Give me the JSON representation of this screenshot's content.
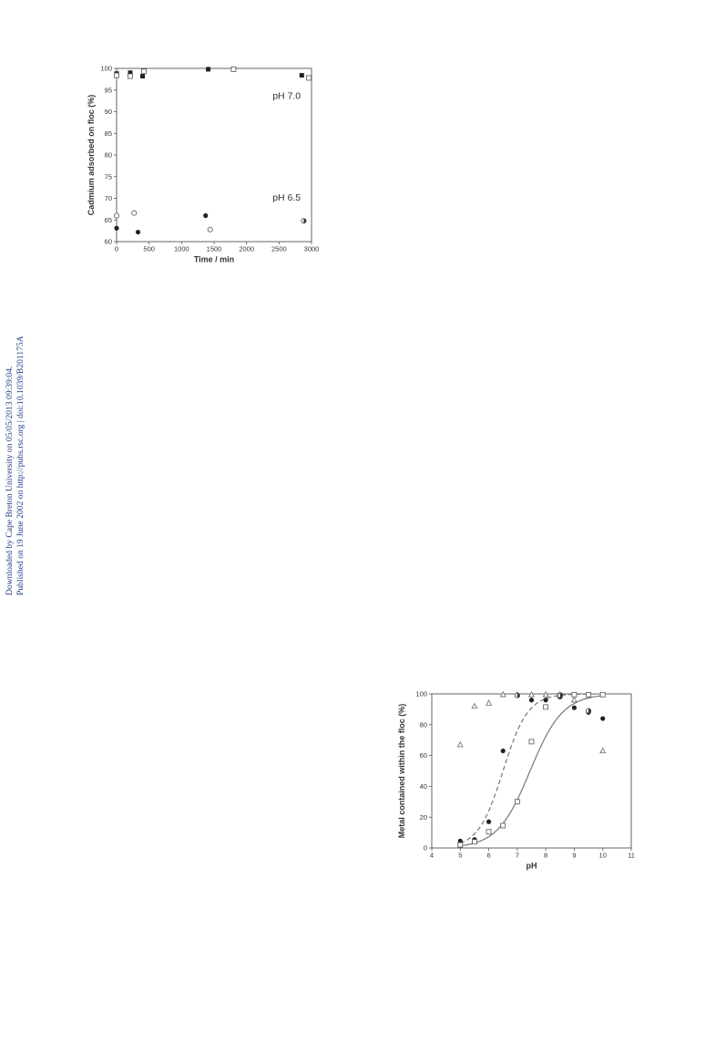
{
  "side_note": {
    "line1": "Downloaded by Cape Breton University on 05/05/2013 09:39:04.",
    "line2": "Published on 19 June 2002 on http://pubs.rsc.org | doi:10.1039/B201175A",
    "color": "#1f3b8f"
  },
  "chart_data": [
    {
      "type": "scatter",
      "title": "",
      "xlabel": "Time / min",
      "ylabel": "Cadmium adsorbed on floc (%)",
      "xlim": [
        0,
        3000
      ],
      "ylim": [
        60,
        100
      ],
      "xticks": [
        0,
        500,
        1000,
        1500,
        2000,
        2500,
        3000
      ],
      "yticks": [
        60,
        65,
        70,
        75,
        80,
        85,
        90,
        95,
        100
      ],
      "grid": false,
      "annotations": [
        {
          "text": "pH 7.0",
          "x": 2400,
          "y": 93
        },
        {
          "text": "pH 6.5",
          "x": 2400,
          "y": 69.5
        }
      ],
      "series": [
        {
          "marker": "filled-square",
          "points": [
            [
              0,
              98.8
            ],
            [
              210,
              99.0
            ],
            [
              400,
              98.2
            ],
            [
              1410,
              99.8
            ],
            [
              2850,
              98.4
            ]
          ]
        },
        {
          "marker": "open-square",
          "points": [
            [
              0,
              98.4
            ],
            [
              210,
              98.2
            ],
            [
              420,
              99.3
            ],
            [
              1800,
              99.8
            ],
            [
              2960,
              97.8
            ]
          ]
        },
        {
          "marker": "filled-circle",
          "points": [
            [
              0,
              63.1
            ],
            [
              330,
              62.2
            ],
            [
              1370,
              66.0
            ]
          ]
        },
        {
          "marker": "open-circle",
          "points": [
            [
              0,
              66.0
            ],
            [
              270,
              66.6
            ],
            [
              1440,
              62.8
            ]
          ]
        },
        {
          "marker": "half-circle",
          "points": [
            [
              2880,
              64.8
            ]
          ]
        }
      ]
    },
    {
      "type": "scatter",
      "title": "",
      "xlabel": "pH",
      "ylabel": "Metal contained within the floc (%)",
      "xlim": [
        4,
        11
      ],
      "ylim": [
        0,
        100
      ],
      "xticks": [
        4,
        5,
        6,
        7,
        8,
        9,
        10,
        11
      ],
      "yticks": [
        0,
        20,
        40,
        60,
        80,
        100
      ],
      "grid": false,
      "series": [
        {
          "marker": "filled-circle",
          "points": [
            [
              5,
              4.5
            ],
            [
              5.5,
              5.5
            ],
            [
              6,
              17
            ],
            [
              6.5,
              63
            ],
            [
              7.5,
              96
            ],
            [
              8,
              96
            ],
            [
              8.5,
              98
            ],
            [
              9,
              91
            ],
            [
              9.5,
              88
            ],
            [
              10,
              84
            ]
          ]
        },
        {
          "marker": "open-square",
          "points": [
            [
              5,
              2
            ],
            [
              5.5,
              4
            ],
            [
              6,
              10.5
            ],
            [
              6.5,
              14.5
            ],
            [
              7,
              30
            ],
            [
              7.5,
              69
            ],
            [
              8,
              91.5
            ],
            [
              8.5,
              99
            ],
            [
              9,
              99.5
            ],
            [
              9.5,
              99.5
            ],
            [
              10,
              99.5
            ]
          ]
        },
        {
          "marker": "open-triangle",
          "points": [
            [
              5,
              67
            ],
            [
              5.5,
              92
            ],
            [
              6,
              94
            ],
            [
              6.5,
              99.5
            ],
            [
              7,
              99.5
            ],
            [
              7.5,
              99.5
            ],
            [
              8,
              99.5
            ],
            [
              8.5,
              99.5
            ],
            [
              9,
              96
            ],
            [
              10,
              63
            ]
          ]
        },
        {
          "marker": "half-circle",
          "points": [
            [
              7,
              99
            ],
            [
              8.5,
              99
            ],
            [
              9.5,
              89
            ]
          ]
        }
      ],
      "curves": [
        {
          "style": "dashed",
          "midpoint": 6.5,
          "slope": 2.3
        },
        {
          "style": "solid",
          "midpoint": 7.45,
          "slope": 1.75
        }
      ]
    }
  ]
}
